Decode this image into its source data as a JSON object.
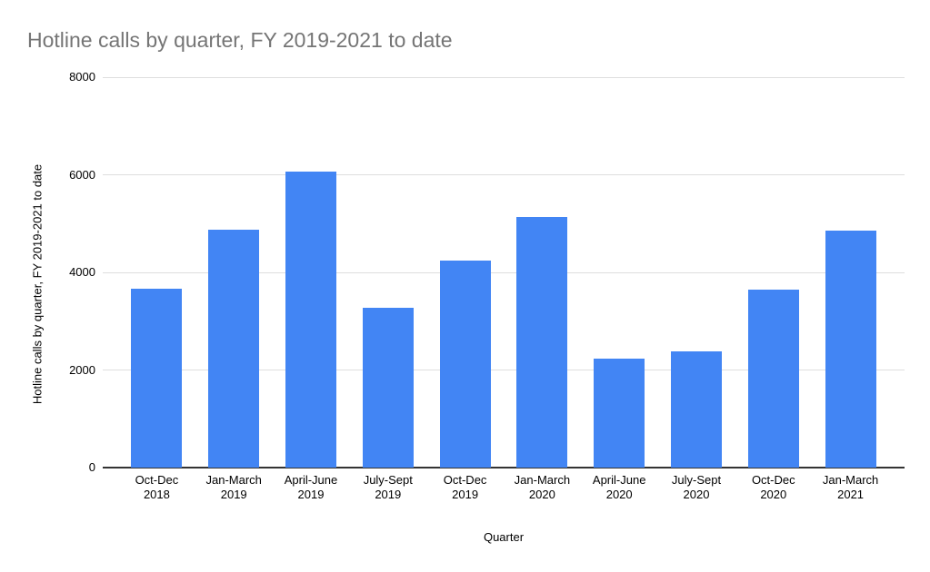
{
  "chart_data": {
    "type": "bar",
    "title": "Hotline calls by quarter, FY 2019-2021 to date",
    "xlabel": "Quarter",
    "ylabel": "Hotline calls by quarter, FY 2019-2021 to date",
    "categories": [
      "Oct-Dec 2018",
      "Jan-March 2019",
      "April-June 2019",
      "July-Sept 2019",
      "Oct-Dec 2019",
      "Jan-March 2020",
      "April-June 2020",
      "July-Sept 2020",
      "Oct-Dec 2020",
      "Jan-March 2021"
    ],
    "values": [
      3660,
      4880,
      6060,
      3270,
      4250,
      5130,
      2240,
      2380,
      3650,
      4860
    ],
    "ylim": [
      0,
      8000
    ],
    "yticks": [
      0,
      2000,
      4000,
      6000,
      8000
    ],
    "grid": true,
    "legend": "none",
    "colors": {
      "bar": "#4285F4",
      "title_text": "#757575",
      "axis_text": "#000000",
      "gridline": "#dedede",
      "baseline": "#333333"
    }
  }
}
